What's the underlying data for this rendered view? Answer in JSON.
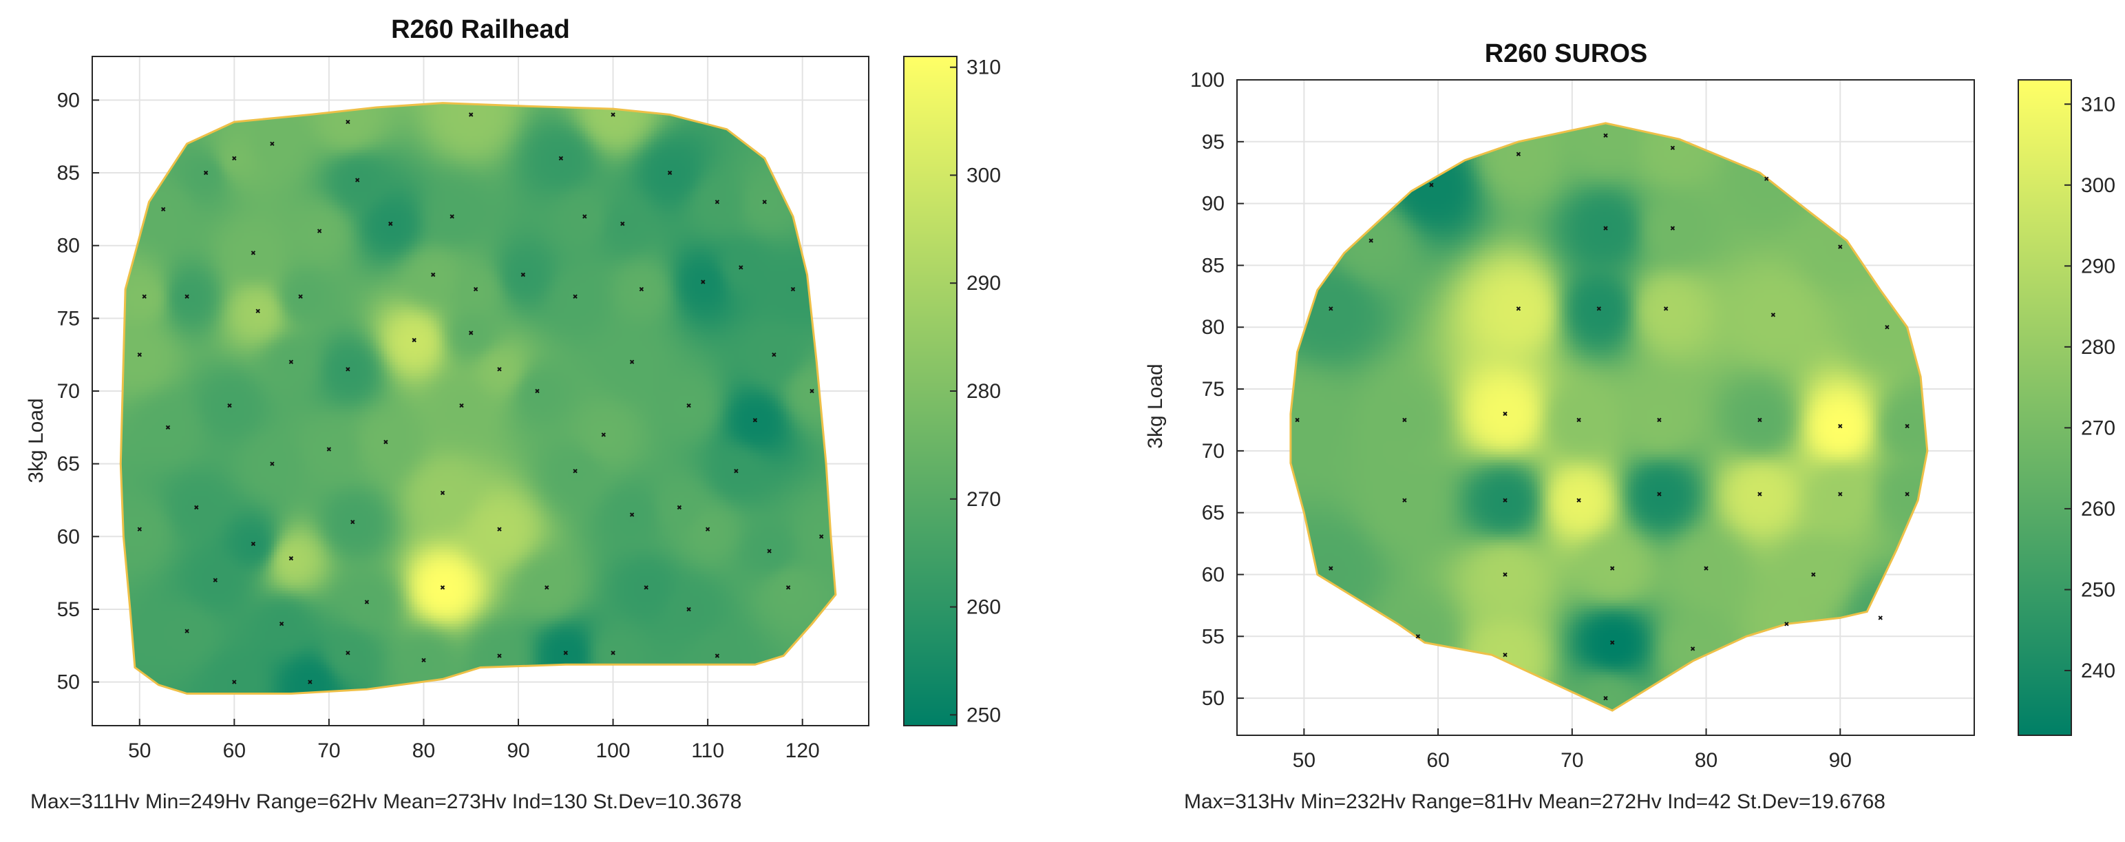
{
  "chart_data": [
    {
      "type": "heatmap",
      "title": "R260  Railhead",
      "xlabel": "",
      "ylabel": "3kg Load",
      "xlim": [
        45,
        127
      ],
      "ylim": [
        47,
        93
      ],
      "xticks": [
        50,
        60,
        70,
        80,
        90,
        100,
        110,
        120
      ],
      "yticks": [
        50,
        55,
        60,
        65,
        70,
        75,
        80,
        85,
        90
      ],
      "grid": true,
      "colorbar": {
        "range": [
          249,
          311
        ],
        "ticks": [
          250,
          260,
          270,
          280,
          290,
          300,
          310
        ],
        "colormap": "summer"
      },
      "boundary": [
        [
          48,
          65
        ],
        [
          48.5,
          77
        ],
        [
          51,
          83
        ],
        [
          55,
          87
        ],
        [
          60,
          88.5
        ],
        [
          68,
          89
        ],
        [
          75,
          89.5
        ],
        [
          82,
          89.8
        ],
        [
          90,
          89.6
        ],
        [
          100,
          89.4
        ],
        [
          106,
          89
        ],
        [
          112,
          88
        ],
        [
          116,
          86
        ],
        [
          119,
          82
        ],
        [
          120.5,
          78
        ],
        [
          121.5,
          72
        ],
        [
          122.5,
          65
        ],
        [
          123,
          60
        ],
        [
          123.5,
          56
        ],
        [
          121,
          54
        ],
        [
          118,
          51.8
        ],
        [
          115,
          51.2
        ],
        [
          108,
          51.2
        ],
        [
          95,
          51.2
        ],
        [
          86,
          51
        ],
        [
          82,
          50.2
        ],
        [
          74,
          49.5
        ],
        [
          66,
          49.2
        ],
        [
          55,
          49.2
        ],
        [
          52,
          49.8
        ],
        [
          49.5,
          51
        ],
        [
          49,
          55
        ],
        [
          48.3,
          60
        ]
      ],
      "points": [
        {
          "x": 52.5,
          "y": 82.5,
          "v": 272
        },
        {
          "x": 55,
          "y": 76.5,
          "v": 264
        },
        {
          "x": 57,
          "y": 85,
          "v": 268
        },
        {
          "x": 59.5,
          "y": 69,
          "v": 266
        },
        {
          "x": 62,
          "y": 79.5,
          "v": 276
        },
        {
          "x": 62.5,
          "y": 75.5,
          "v": 288
        },
        {
          "x": 64,
          "y": 87,
          "v": 276
        },
        {
          "x": 66,
          "y": 72,
          "v": 270
        },
        {
          "x": 67,
          "y": 76.5,
          "v": 270
        },
        {
          "x": 69,
          "y": 81,
          "v": 275
        },
        {
          "x": 72,
          "y": 71.5,
          "v": 262
        },
        {
          "x": 73,
          "y": 84.5,
          "v": 262
        },
        {
          "x": 76.5,
          "y": 81.5,
          "v": 258
        },
        {
          "x": 79,
          "y": 73.5,
          "v": 298
        },
        {
          "x": 81,
          "y": 78,
          "v": 276
        },
        {
          "x": 83,
          "y": 82,
          "v": 268
        },
        {
          "x": 85.5,
          "y": 77,
          "v": 274
        },
        {
          "x": 88,
          "y": 71.5,
          "v": 282
        },
        {
          "x": 90.5,
          "y": 78,
          "v": 262
        },
        {
          "x": 94.5,
          "y": 86,
          "v": 262
        },
        {
          "x": 96,
          "y": 76.5,
          "v": 268
        },
        {
          "x": 101,
          "y": 81.5,
          "v": 264
        },
        {
          "x": 102,
          "y": 72,
          "v": 270
        },
        {
          "x": 103,
          "y": 77,
          "v": 272
        },
        {
          "x": 106,
          "y": 85,
          "v": 258
        },
        {
          "x": 109.5,
          "y": 77.5,
          "v": 254
        },
        {
          "x": 113.5,
          "y": 78.5,
          "v": 262
        },
        {
          "x": 115,
          "y": 68,
          "v": 252
        },
        {
          "x": 117,
          "y": 72.5,
          "v": 264
        },
        {
          "x": 119,
          "y": 77,
          "v": 262
        },
        {
          "x": 53,
          "y": 67.5,
          "v": 270
        },
        {
          "x": 56,
          "y": 62,
          "v": 264
        },
        {
          "x": 58,
          "y": 57,
          "v": 262
        },
        {
          "x": 62,
          "y": 59.5,
          "v": 258
        },
        {
          "x": 64,
          "y": 65,
          "v": 270
        },
        {
          "x": 66,
          "y": 58.5,
          "v": 290
        },
        {
          "x": 68,
          "y": 50,
          "v": 252
        },
        {
          "x": 72.5,
          "y": 61,
          "v": 266
        },
        {
          "x": 74,
          "y": 55.5,
          "v": 270
        },
        {
          "x": 76,
          "y": 66.5,
          "v": 276
        },
        {
          "x": 82,
          "y": 56.5,
          "v": 311
        },
        {
          "x": 82,
          "y": 63,
          "v": 286
        },
        {
          "x": 84,
          "y": 69,
          "v": 278
        },
        {
          "x": 88,
          "y": 60.5,
          "v": 292
        },
        {
          "x": 93,
          "y": 56.5,
          "v": 274
        },
        {
          "x": 95,
          "y": 52,
          "v": 252
        },
        {
          "x": 96,
          "y": 64.5,
          "v": 270
        },
        {
          "x": 99,
          "y": 67,
          "v": 274
        },
        {
          "x": 102,
          "y": 61.5,
          "v": 266
        },
        {
          "x": 103.5,
          "y": 56.5,
          "v": 262
        },
        {
          "x": 107,
          "y": 62,
          "v": 270
        },
        {
          "x": 108,
          "y": 55,
          "v": 264
        },
        {
          "x": 110,
          "y": 60.5,
          "v": 272
        },
        {
          "x": 113,
          "y": 64.5,
          "v": 262
        },
        {
          "x": 116.5,
          "y": 59,
          "v": 266
        },
        {
          "x": 118.5,
          "y": 56.5,
          "v": 272
        },
        {
          "x": 111,
          "y": 51.8,
          "v": 266
        },
        {
          "x": 88,
          "y": 51.8,
          "v": 268
        },
        {
          "x": 60,
          "y": 50,
          "v": 262
        },
        {
          "x": 50,
          "y": 60.5,
          "v": 270
        },
        {
          "x": 50,
          "y": 72.5,
          "v": 278
        },
        {
          "x": 50.5,
          "y": 76.5,
          "v": 280
        },
        {
          "x": 100,
          "y": 89,
          "v": 286
        },
        {
          "x": 85,
          "y": 89,
          "v": 284
        },
        {
          "x": 72,
          "y": 88.5,
          "v": 280
        },
        {
          "x": 60,
          "y": 86,
          "v": 278
        },
        {
          "x": 122,
          "y": 60,
          "v": 270
        },
        {
          "x": 121,
          "y": 70,
          "v": 272
        },
        {
          "x": 65,
          "y": 54,
          "v": 262
        },
        {
          "x": 72,
          "y": 52,
          "v": 264
        },
        {
          "x": 80,
          "y": 51.5,
          "v": 270
        },
        {
          "x": 100,
          "y": 52,
          "v": 266
        },
        {
          "x": 55,
          "y": 53.5,
          "v": 266
        },
        {
          "x": 85,
          "y": 74,
          "v": 272
        },
        {
          "x": 92,
          "y": 70,
          "v": 270
        },
        {
          "x": 97,
          "y": 82,
          "v": 268
        },
        {
          "x": 108,
          "y": 69,
          "v": 270
        },
        {
          "x": 111,
          "y": 83,
          "v": 266
        },
        {
          "x": 116,
          "y": 83,
          "v": 270
        },
        {
          "x": 70,
          "y": 66,
          "v": 272
        }
      ],
      "stats": "Max=311Hv Min=249Hv Range=62Hv Mean=273Hv   Ind=130 St.Dev=10.3678"
    },
    {
      "type": "heatmap",
      "title": "R260  SUROS",
      "xlabel": "",
      "ylabel": "3kg Load",
      "xlim": [
        45,
        100
      ],
      "ylim": [
        47,
        100
      ],
      "xticks": [
        50,
        60,
        70,
        80,
        90
      ],
      "yticks": [
        50,
        55,
        60,
        65,
        70,
        75,
        80,
        85,
        90,
        95,
        100
      ],
      "grid": true,
      "colorbar": {
        "range": [
          232,
          313
        ],
        "ticks": [
          240,
          250,
          260,
          270,
          280,
          290,
          300,
          310
        ],
        "colormap": "summer"
      },
      "boundary": [
        [
          49,
          73
        ],
        [
          49.5,
          78
        ],
        [
          51,
          83
        ],
        [
          53,
          86
        ],
        [
          55,
          88
        ],
        [
          58,
          91
        ],
        [
          62,
          93.5
        ],
        [
          66,
          95
        ],
        [
          72.5,
          96.5
        ],
        [
          78,
          95.2
        ],
        [
          84,
          92.5
        ],
        [
          87.5,
          89.5
        ],
        [
          90.5,
          87
        ],
        [
          93,
          83
        ],
        [
          95,
          80
        ],
        [
          96,
          76
        ],
        [
          96.5,
          70
        ],
        [
          95.8,
          66
        ],
        [
          94.2,
          62
        ],
        [
          92,
          57
        ],
        [
          90,
          56.5
        ],
        [
          86,
          56
        ],
        [
          83,
          55
        ],
        [
          79,
          53
        ],
        [
          73,
          49
        ],
        [
          69,
          51
        ],
        [
          64,
          53.5
        ],
        [
          59,
          54.5
        ],
        [
          57,
          56
        ],
        [
          54,
          58
        ],
        [
          51,
          60
        ],
        [
          50,
          65
        ],
        [
          49,
          69
        ]
      ],
      "points": [
        {
          "x": 72.5,
          "y": 95.5,
          "v": 270
        },
        {
          "x": 66,
          "y": 94,
          "v": 272
        },
        {
          "x": 77.5,
          "y": 94.5,
          "v": 274
        },
        {
          "x": 84.5,
          "y": 92,
          "v": 268
        },
        {
          "x": 59.5,
          "y": 91.5,
          "v": 236
        },
        {
          "x": 55,
          "y": 87,
          "v": 264
        },
        {
          "x": 72.5,
          "y": 88,
          "v": 244
        },
        {
          "x": 77.5,
          "y": 88,
          "v": 268
        },
        {
          "x": 90,
          "y": 86.5,
          "v": 272
        },
        {
          "x": 52,
          "y": 81.5,
          "v": 250
        },
        {
          "x": 66,
          "y": 81.5,
          "v": 302
        },
        {
          "x": 72,
          "y": 81.5,
          "v": 242
        },
        {
          "x": 77,
          "y": 81.5,
          "v": 286
        },
        {
          "x": 85,
          "y": 81,
          "v": 280
        },
        {
          "x": 93.5,
          "y": 80,
          "v": 274
        },
        {
          "x": 49.5,
          "y": 72.5,
          "v": 266
        },
        {
          "x": 57.5,
          "y": 72.5,
          "v": 268
        },
        {
          "x": 65,
          "y": 73,
          "v": 310
        },
        {
          "x": 70.5,
          "y": 72.5,
          "v": 276
        },
        {
          "x": 76.5,
          "y": 72.5,
          "v": 274
        },
        {
          "x": 84,
          "y": 72.5,
          "v": 262
        },
        {
          "x": 90,
          "y": 72,
          "v": 313
        },
        {
          "x": 95,
          "y": 72,
          "v": 266
        },
        {
          "x": 57.5,
          "y": 66,
          "v": 268
        },
        {
          "x": 65,
          "y": 66,
          "v": 242
        },
        {
          "x": 70.5,
          "y": 66,
          "v": 306
        },
        {
          "x": 76.5,
          "y": 66.5,
          "v": 240
        },
        {
          "x": 84,
          "y": 66.5,
          "v": 298
        },
        {
          "x": 90,
          "y": 66.5,
          "v": 282
        },
        {
          "x": 95,
          "y": 66.5,
          "v": 266
        },
        {
          "x": 52,
          "y": 60.5,
          "v": 258
        },
        {
          "x": 65,
          "y": 60,
          "v": 286
        },
        {
          "x": 73,
          "y": 60.5,
          "v": 278
        },
        {
          "x": 80,
          "y": 60.5,
          "v": 272
        },
        {
          "x": 88,
          "y": 60,
          "v": 276
        },
        {
          "x": 93,
          "y": 56.5,
          "v": 256
        },
        {
          "x": 58.5,
          "y": 55,
          "v": 266
        },
        {
          "x": 65,
          "y": 53.5,
          "v": 290
        },
        {
          "x": 73,
          "y": 54.5,
          "v": 232
        },
        {
          "x": 79,
          "y": 54,
          "v": 270
        },
        {
          "x": 86,
          "y": 56,
          "v": 276
        },
        {
          "x": 72.5,
          "y": 50,
          "v": 262
        }
      ],
      "stats": "Max=313Hv Min=232Hv Range=81Hv Mean=272Hv   Ind=42 St.Dev=19.6768"
    }
  ]
}
